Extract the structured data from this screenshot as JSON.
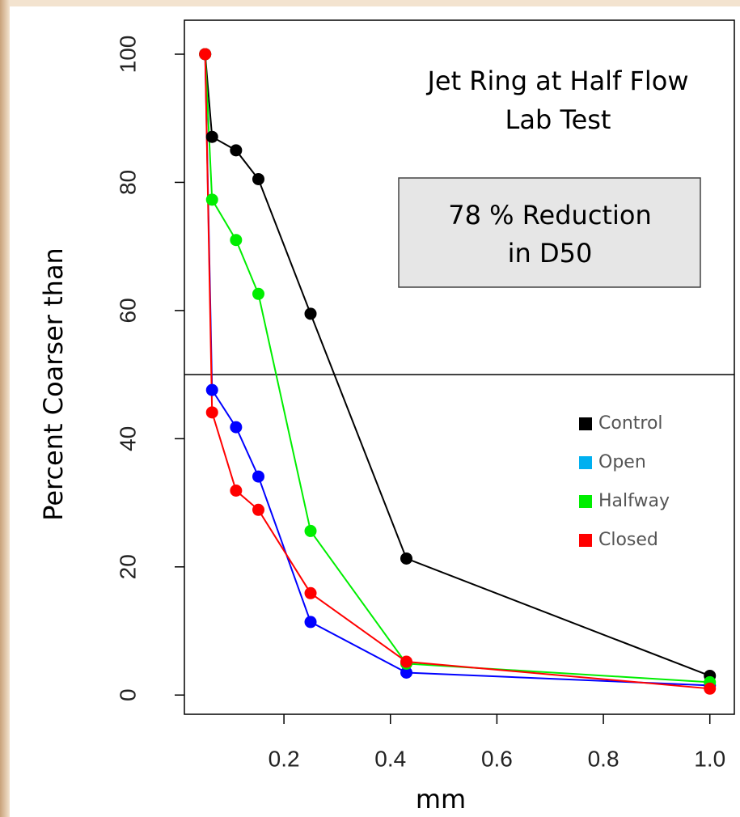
{
  "chart_data": {
    "type": "line",
    "y_label": "Percent Coarser than",
    "x_label": "mm",
    "annotations": [
      "Jet Ring at Half Flow",
      "Lab Test"
    ],
    "box_text": [
      "78 % Reduction",
      "in D50"
    ],
    "hline": 50,
    "x": [
      0.052,
      0.065,
      0.11,
      0.152,
      0.25,
      0.43,
      1.0
    ],
    "series": [
      {
        "name": "Control",
        "color": "#000000",
        "legend_color": "#000000",
        "values": [
          100,
          87.1,
          85,
          80.5,
          59.5,
          21.3,
          3
        ]
      },
      {
        "name": "Open",
        "color": "#0000ff",
        "legend_color": "#00b0f0",
        "values": [
          100,
          47.6,
          41.8,
          34.1,
          11.4,
          3.5,
          1.5
        ]
      },
      {
        "name": "Halfway",
        "color": "#00ee00",
        "legend_color": "#00ee00",
        "values": [
          100,
          77.3,
          71,
          62.6,
          25.6,
          4.9,
          2
        ]
      },
      {
        "name": "Closed",
        "color": "#ff0000",
        "legend_color": "#ff0000",
        "values": [
          100,
          44.1,
          31.9,
          28.9,
          15.9,
          5.2,
          1
        ]
      }
    ],
    "xlim": [
      0.013,
      1.046
    ],
    "ylim": [
      -3,
      105.3
    ],
    "xticks": [
      0.2,
      0.4,
      0.6,
      0.8,
      {
        "value": 1,
        "label": "1.0"
      }
    ],
    "yticks": [
      0,
      20,
      40,
      60,
      80,
      100
    ]
  }
}
